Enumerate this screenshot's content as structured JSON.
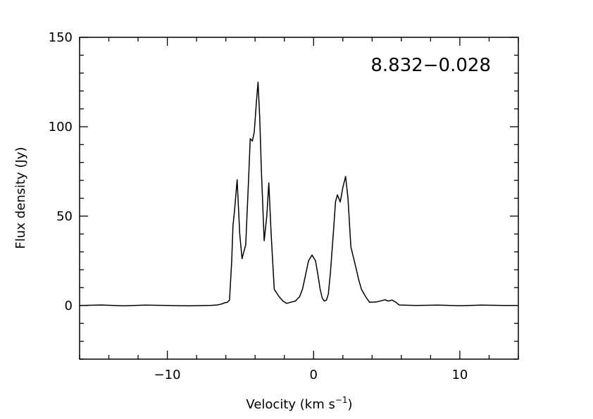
{
  "chart_data": {
    "type": "line",
    "title": "8.832−0.028",
    "xlabel": "Velocity (km s",
    "xlabel_sup": "−1",
    "xlabel_end": ")",
    "ylabel": "Flux density (Jy)",
    "xlim": [
      -16,
      14
    ],
    "ylim": [
      -30,
      150
    ],
    "xticks": [
      -10,
      0,
      10
    ],
    "xtick_labels": [
      "−10",
      "0",
      "10"
    ],
    "xminor_step": 2,
    "yticks": [
      0,
      50,
      100,
      150
    ],
    "ytick_labels": [
      "0",
      "50",
      "100",
      "150"
    ],
    "yminor_step": 10,
    "grid": false,
    "series": [
      {
        "name": "spectrum",
        "color": "#000000",
        "x": [
          -16,
          -14.5,
          -13,
          -11.5,
          -10,
          -8.5,
          -7,
          -6.6,
          -6.3,
          -6.09,
          -5.9,
          -5.75,
          -5.6,
          -5.51,
          -5.41,
          -5.23,
          -5.05,
          -4.89,
          -4.64,
          -4.45,
          -4.33,
          -4.19,
          -4.06,
          -3.9,
          -3.8,
          -3.68,
          -3.57,
          -3.38,
          -3.2,
          -3.06,
          -2.9,
          -2.69,
          -2.37,
          -2.1,
          -1.84,
          -1.5,
          -1.24,
          -0.95,
          -0.76,
          -0.55,
          -0.35,
          -0.11,
          0.13,
          0.3,
          0.45,
          0.6,
          0.74,
          0.88,
          1.01,
          1.15,
          1.34,
          1.5,
          1.63,
          1.82,
          2.0,
          2.19,
          2.35,
          2.55,
          2.86,
          3.1,
          3.27,
          3.55,
          3.83,
          4.3,
          4.88,
          5.1,
          5.36,
          5.6,
          5.85,
          7,
          8.5,
          10,
          11.5,
          13,
          14
        ],
        "y": [
          0,
          0.3,
          -0.2,
          0.2,
          0,
          -0.2,
          0.1,
          0.3,
          0.8,
          1.5,
          1.8,
          3,
          25,
          44.6,
          52.5,
          70.3,
          40,
          26.2,
          34,
          70,
          93.3,
          92,
          97,
          115,
          124.9,
          105,
          76,
          36.2,
          50,
          68.6,
          40,
          9.1,
          5.1,
          2.5,
          1.2,
          2,
          2.5,
          5,
          9.1,
          17,
          24.9,
          28.2,
          25,
          17,
          9,
          4,
          2.5,
          3,
          6.4,
          18,
          39.4,
          58,
          61.9,
          57.9,
          66,
          72.2,
          60,
          32.8,
          22.3,
          14,
          9.1,
          5,
          1.8,
          2,
          3.2,
          2.5,
          3,
          2,
          0.3,
          0,
          0.2,
          -0.1,
          0.2,
          0,
          0
        ]
      }
    ]
  }
}
